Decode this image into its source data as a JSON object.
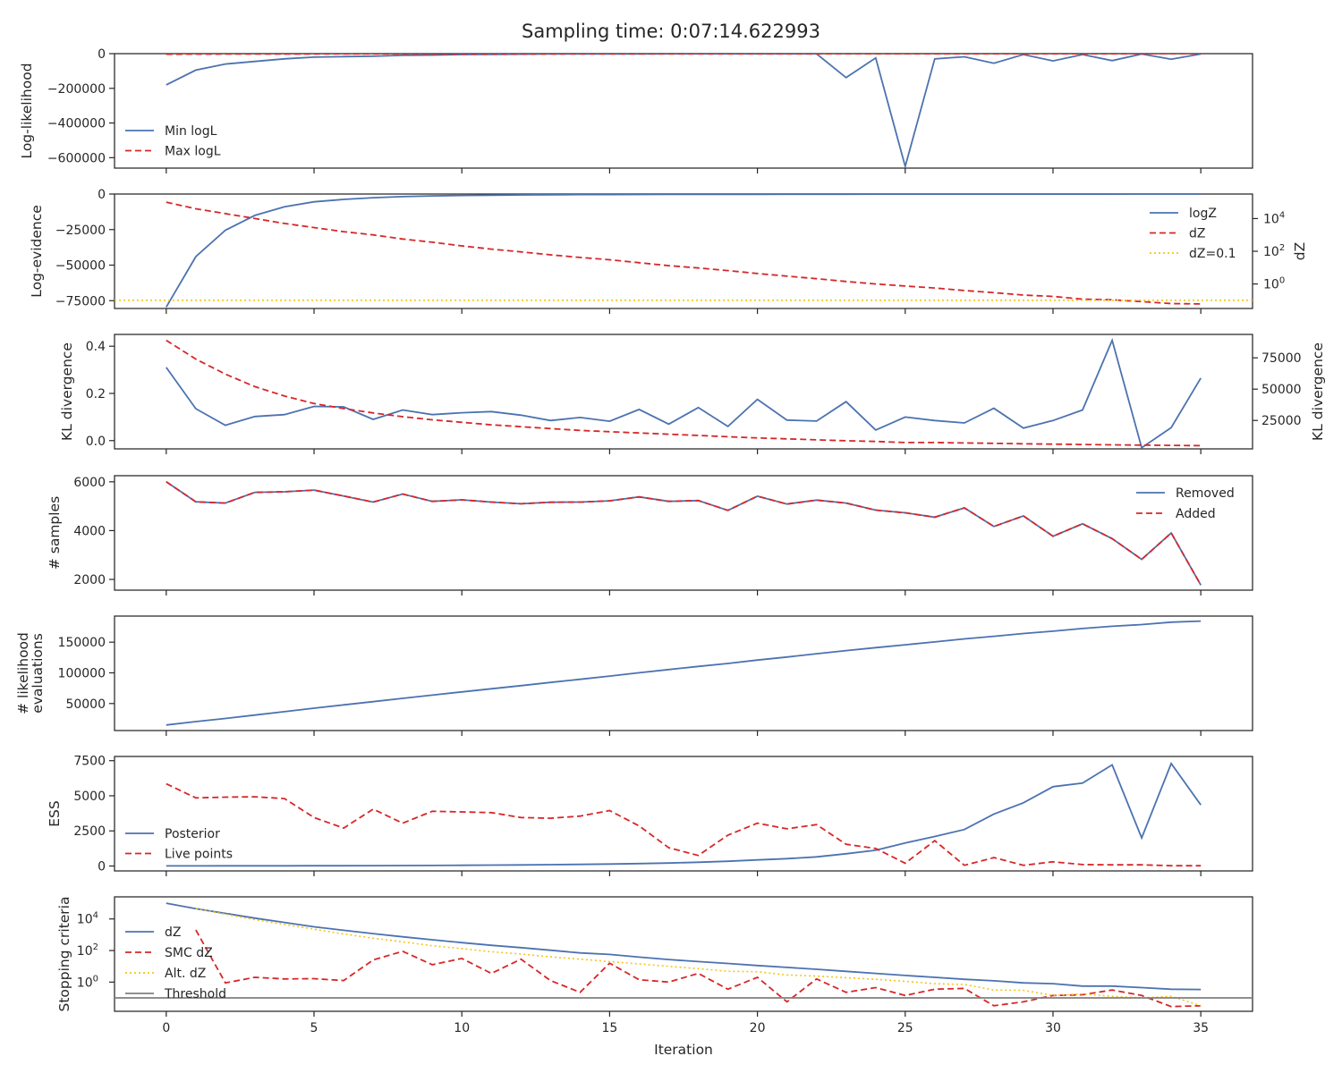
{
  "figure": {
    "title": "Sampling time: 0:07:14.622993",
    "xlabel": "Iteration"
  },
  "colors": {
    "blue": "#4c72b0",
    "red": "#d62728",
    "yellow": "#f5c518",
    "gray": "#7f7f7f",
    "axis": "#262626"
  },
  "x_ticks": [
    0,
    5,
    10,
    15,
    20,
    25,
    30,
    35
  ],
  "chart_data": [
    {
      "type": "line",
      "ylabel": "Log-likelihood",
      "ylim": [
        -660000,
        0
      ],
      "y_ticks": [
        0,
        -200000,
        -400000,
        -600000
      ],
      "y_tick_labels": [
        "0",
        "−200000",
        "−400000",
        "−600000"
      ],
      "legend_position": "lower-left",
      "series": [
        {
          "name": "Min logL",
          "color": "blue",
          "style": "solid",
          "values": [
            -180000,
            -95000,
            -60000,
            -45000,
            -30000,
            -20000,
            -17000,
            -15000,
            -10000,
            -8000,
            -5000,
            -4000,
            -3000,
            -2000,
            -2000,
            -1500,
            -1500,
            -1000,
            -1000,
            -1000,
            -1000,
            -800,
            -800,
            -138000,
            -25000,
            -650000,
            -30000,
            -18000,
            -55000,
            -5000,
            -42000,
            -5000,
            -40000,
            -2000,
            -32000,
            -2000
          ]
        },
        {
          "name": "Max logL",
          "color": "red",
          "style": "dashed",
          "values": [
            -3000,
            -2500,
            -2000,
            -2000,
            -1500,
            -1500,
            -1200,
            -1200,
            -1000,
            -1000,
            -900,
            -900,
            -800,
            -800,
            -700,
            -700,
            -600,
            -600,
            -600,
            -500,
            -500,
            -500,
            -500,
            -400,
            -400,
            -400,
            -400,
            -350,
            -350,
            -300,
            -300,
            -300,
            -300,
            -250,
            -250,
            -250
          ]
        }
      ]
    },
    {
      "type": "line",
      "ylabel": "Log-evidence",
      "y2label": "dZ",
      "ylim": [
        -80500,
        0
      ],
      "y_ticks": [
        0,
        -25000,
        -50000,
        -75000
      ],
      "y_tick_labels": [
        "0",
        "−25000",
        "−50000",
        "−75000"
      ],
      "y2_scale": "log",
      "y2_log_range": [
        -1.5,
        5.5
      ],
      "y2_ticks": [
        0,
        2,
        4
      ],
      "y2_tick_labels": [
        "10",
        "10",
        "10"
      ],
      "y2_tick_exps": [
        "0",
        "2",
        "4"
      ],
      "legend_position": "right",
      "series": [
        {
          "name": "logZ",
          "color": "blue",
          "style": "solid",
          "axis": "left",
          "values": [
            -79500,
            -44000,
            -25500,
            -15000,
            -9000,
            -5500,
            -3800,
            -2600,
            -1800,
            -1300,
            -1000,
            -800,
            -600,
            -500,
            -400,
            -350,
            -300,
            -250,
            -200,
            -180,
            -160,
            -140,
            -120,
            -100,
            -90,
            -80,
            -70,
            -60,
            -55,
            -50,
            -45,
            -40,
            -35,
            -30,
            -28,
            -25
          ]
        },
        {
          "name": "dZ",
          "color": "red",
          "style": "dashed",
          "axis": "right",
          "scale": "log10",
          "values": [
            5.0,
            4.6,
            4.3,
            4.0,
            3.7,
            3.45,
            3.2,
            3.0,
            2.75,
            2.55,
            2.33,
            2.13,
            1.96,
            1.78,
            1.62,
            1.48,
            1.3,
            1.12,
            0.98,
            0.82,
            0.64,
            0.48,
            0.32,
            0.15,
            0.0,
            -0.13,
            -0.25,
            -0.4,
            -0.53,
            -0.68,
            -0.76,
            -0.93,
            -0.97,
            -1.08,
            -1.2,
            -1.22
          ]
        },
        {
          "name": "dZ=0.1",
          "color": "yellow",
          "style": "dotted",
          "axis": "right",
          "constant": 0.1
        }
      ]
    },
    {
      "type": "line",
      "ylabel": "KL divergence",
      "y2label": "KL divergence",
      "ylim": [
        -0.035,
        0.45
      ],
      "y_ticks": [
        0.0,
        0.2,
        0.4
      ],
      "y_tick_labels": [
        "0.0",
        "0.2",
        "0.4"
      ],
      "y2lim": [
        2300,
        93700
      ],
      "y2_ticks": [
        25000,
        50000,
        75000
      ],
      "y2_tick_labels": [
        "25000",
        "50000",
        "75000"
      ],
      "series": [
        {
          "color": "blue",
          "style": "solid",
          "axis": "left",
          "values": [
            0.31,
            0.135,
            0.065,
            0.102,
            0.11,
            0.145,
            0.143,
            0.09,
            0.13,
            0.11,
            0.118,
            0.123,
            0.108,
            0.085,
            0.098,
            0.082,
            0.132,
            0.07,
            0.14,
            0.06,
            0.175,
            0.087,
            0.083,
            0.165,
            0.045,
            0.1,
            0.085,
            0.075,
            0.137,
            0.053,
            0.085,
            0.13,
            0.425,
            -0.03,
            0.055,
            0.265
          ]
        },
        {
          "color": "red",
          "style": "dashed",
          "axis": "right",
          "values": [
            89000,
            74000,
            62000,
            52000,
            44500,
            38500,
            34500,
            31000,
            28000,
            25500,
            23500,
            21500,
            20000,
            18500,
            17000,
            16000,
            15000,
            14000,
            13000,
            12000,
            11000,
            10300,
            9500,
            8800,
            8200,
            7400,
            7400,
            7000,
            6700,
            6400,
            6100,
            5800,
            5500,
            5300,
            5100,
            4900
          ]
        }
      ]
    },
    {
      "type": "line",
      "ylabel": "# samples",
      "ylim": [
        1560,
        6250
      ],
      "y_ticks": [
        2000,
        4000,
        6000
      ],
      "y_tick_labels": [
        "2000",
        "4000",
        "6000"
      ],
      "legend_position": "upper-right",
      "series": [
        {
          "name": "Removed",
          "color": "blue",
          "style": "solid",
          "values": [
            6000,
            5180,
            5130,
            5570,
            5590,
            5660,
            5420,
            5170,
            5500,
            5200,
            5260,
            5170,
            5100,
            5160,
            5170,
            5220,
            5380,
            5200,
            5230,
            4830,
            5410,
            5090,
            5250,
            5130,
            4840,
            4730,
            4550,
            4930,
            4170,
            4600,
            3770,
            4280,
            3670,
            2820,
            3900,
            1770
          ]
        },
        {
          "name": "Added",
          "color": "red",
          "style": "dashed",
          "values": [
            6000,
            5180,
            5130,
            5570,
            5590,
            5660,
            5420,
            5170,
            5500,
            5200,
            5260,
            5170,
            5100,
            5160,
            5170,
            5220,
            5380,
            5200,
            5230,
            4830,
            5410,
            5090,
            5250,
            5130,
            4840,
            4730,
            4550,
            4930,
            4170,
            4600,
            3770,
            4280,
            3670,
            2820,
            3900,
            1770
          ]
        }
      ]
    },
    {
      "type": "line",
      "ylabel": "# likelihood",
      "ylabel2": "evaluations",
      "ylim": [
        6000,
        192500
      ],
      "y_ticks": [
        50000,
        100000,
        150000
      ],
      "y_tick_labels": [
        "50000",
        "100000",
        "150000"
      ],
      "series": [
        {
          "color": "blue",
          "style": "solid",
          "values": [
            15000,
            20500,
            25600,
            31200,
            36800,
            42400,
            47800,
            53000,
            58500,
            63700,
            69000,
            74100,
            79200,
            84400,
            89500,
            94800,
            100100,
            105300,
            110500,
            115300,
            120800,
            125800,
            131100,
            136200,
            141000,
            145800,
            150400,
            155300,
            159500,
            164100,
            167900,
            172200,
            175900,
            178700,
            182600,
            184400
          ]
        }
      ]
    },
    {
      "type": "line",
      "ylabel": "ESS",
      "ylim": [
        -350,
        7800
      ],
      "y_ticks": [
        0,
        2500,
        5000,
        7500
      ],
      "y_tick_labels": [
        "0",
        "2500",
        "5000",
        "7500"
      ],
      "legend_position": "lower-left",
      "series": [
        {
          "name": "Posterior",
          "color": "blue",
          "style": "solid",
          "values": [
            5,
            8,
            10,
            12,
            15,
            18,
            22,
            27,
            33,
            40,
            50,
            62,
            77,
            95,
            115,
            140,
            170,
            210,
            270,
            340,
            430,
            520,
            650,
            870,
            1120,
            1640,
            2100,
            2600,
            3700,
            4500,
            5650,
            5900,
            7200,
            2000,
            7300,
            4350
          ]
        },
        {
          "name": "Live points",
          "color": "red",
          "style": "dashed",
          "values": [
            5850,
            4850,
            4900,
            4930,
            4800,
            3450,
            2700,
            4050,
            3050,
            3900,
            3850,
            3800,
            3450,
            3400,
            3550,
            3950,
            2850,
            1300,
            750,
            2200,
            3050,
            2650,
            2950,
            1550,
            1250,
            200,
            1800,
            50,
            600,
            50,
            300,
            100,
            80,
            80,
            20,
            20
          ]
        }
      ]
    },
    {
      "type": "line",
      "ylabel": "Stopping criteria",
      "yscale": "log",
      "y_log_range": [
        -1.85,
        5.4
      ],
      "y_ticks": [
        0,
        2,
        4
      ],
      "y_tick_labels": [
        "10",
        "10",
        "10"
      ],
      "y_tick_exps": [
        "0",
        "2",
        "4"
      ],
      "legend_position": "left",
      "series": [
        {
          "name": "dZ",
          "color": "blue",
          "style": "solid",
          "scale": "log10",
          "values": [
            5.0,
            4.65,
            4.35,
            4.05,
            3.78,
            3.5,
            3.28,
            3.07,
            2.87,
            2.68,
            2.5,
            2.33,
            2.18,
            2.02,
            1.85,
            1.75,
            1.58,
            1.43,
            1.3,
            1.18,
            1.05,
            0.93,
            0.81,
            0.68,
            0.55,
            0.42,
            0.3,
            0.18,
            0.08,
            -0.05,
            -0.1,
            -0.25,
            -0.25,
            -0.35,
            -0.45,
            -0.47
          ]
        },
        {
          "name": "SMC dZ",
          "color": "red",
          "style": "dashed",
          "scale": "log10",
          "values": [
            null,
            3.3,
            -0.05,
            0.3,
            0.2,
            0.22,
            0.1,
            1.4,
            1.95,
            1.1,
            1.5,
            0.55,
            1.45,
            0.1,
            -0.65,
            1.2,
            0.15,
            0.0,
            0.55,
            -0.45,
            0.3,
            -1.25,
            0.2,
            -0.65,
            -0.35,
            -0.85,
            -0.45,
            -0.4,
            -1.5,
            -1.25,
            -0.85,
            -0.8,
            -0.5,
            -0.85,
            -1.55,
            -1.5
          ]
        },
        {
          "name": "Alt. dZ",
          "color": "yellow",
          "style": "dotted",
          "scale": "log10",
          "values": [
            null,
            4.65,
            4.3,
            3.95,
            3.65,
            3.35,
            3.05,
            2.78,
            2.55,
            2.3,
            2.12,
            1.92,
            1.78,
            1.6,
            1.45,
            1.3,
            1.15,
            1.0,
            0.85,
            0.68,
            0.66,
            0.45,
            0.38,
            0.28,
            0.18,
            0.05,
            -0.1,
            -0.15,
            -0.5,
            -0.52,
            -0.85,
            -0.75,
            -0.9,
            -1.0,
            -0.9,
            -1.5
          ]
        },
        {
          "name": "Threshold",
          "color": "gray",
          "style": "solid",
          "constant": 0.1
        }
      ]
    }
  ]
}
